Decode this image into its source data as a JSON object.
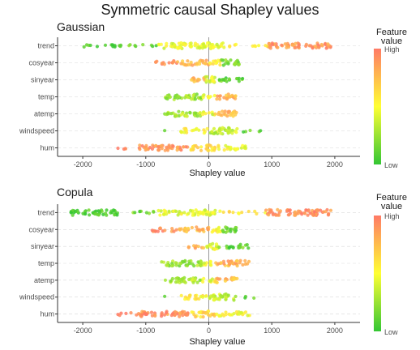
{
  "title": "Symmetric causal Shapley values",
  "legend": {
    "title_line1": "Feature",
    "title_line2": "value",
    "high": "High",
    "low": "Low",
    "colors": [
      "#33c633",
      "#ffff33",
      "#ff7a66"
    ]
  },
  "point_colors": {
    "low": "#33c633",
    "mid": "#ffff33",
    "high": "#ff7a66"
  },
  "chart_data": [
    {
      "type": "scatter",
      "title": "Gaussian",
      "xlabel": "Shapley value",
      "xlim": [
        -2400,
        2400
      ],
      "x_ticks": [
        -2000,
        -1000,
        0,
        1000,
        2000
      ],
      "features": [
        "trend",
        "cosyear",
        "sinyear",
        "temp",
        "atemp",
        "windspeed",
        "hum"
      ],
      "series": [
        {
          "feature": "trend",
          "range": [
            -2100,
            1950
          ],
          "segments": [
            {
              "from": -2100,
              "to": -1400,
              "value": 0.05,
              "density": 0.25
            },
            {
              "from": -1400,
              "to": -800,
              "value": 0.15,
              "density": 0.2
            },
            {
              "from": -800,
              "to": 250,
              "value": 0.45,
              "density": 0.9
            },
            {
              "from": 250,
              "to": 950,
              "value": 0.6,
              "density": 0.2
            },
            {
              "from": 950,
              "to": 1950,
              "value": 0.9,
              "density": 0.8
            }
          ]
        },
        {
          "feature": "cosyear",
          "range": [
            -850,
            500
          ],
          "segments": [
            {
              "from": -850,
              "to": -500,
              "value": 0.95,
              "density": 0.5
            },
            {
              "from": -500,
              "to": 0,
              "value": 0.75,
              "density": 0.7
            },
            {
              "from": 0,
              "to": 200,
              "value": 0.55,
              "density": 0.8
            },
            {
              "from": 200,
              "to": 500,
              "value": 0.15,
              "density": 0.9
            }
          ]
        },
        {
          "feature": "sinyear",
          "range": [
            -300,
            600
          ],
          "segments": [
            {
              "from": -300,
              "to": -50,
              "value": 0.8,
              "density": 0.7
            },
            {
              "from": -50,
              "to": 150,
              "value": 0.45,
              "density": 1.0
            },
            {
              "from": 150,
              "to": 600,
              "value": 0.1,
              "density": 0.5
            }
          ]
        },
        {
          "feature": "temp",
          "range": [
            -700,
            450
          ],
          "segments": [
            {
              "from": -700,
              "to": -100,
              "value": 0.25,
              "density": 0.8
            },
            {
              "from": -100,
              "to": 100,
              "value": 0.45,
              "density": 0.5
            },
            {
              "from": 100,
              "to": 450,
              "value": 0.8,
              "density": 0.8
            }
          ]
        },
        {
          "feature": "atemp",
          "range": [
            -700,
            450
          ],
          "segments": [
            {
              "from": -700,
              "to": -100,
              "value": 0.3,
              "density": 0.8
            },
            {
              "from": -100,
              "to": 100,
              "value": 0.45,
              "density": 0.5
            },
            {
              "from": 100,
              "to": 450,
              "value": 0.75,
              "density": 0.8
            }
          ]
        },
        {
          "feature": "windspeed",
          "range": [
            -700,
            900
          ],
          "segments": [
            {
              "from": -700,
              "to": -700,
              "value": 0.05,
              "density": 0.1
            },
            {
              "from": -450,
              "to": 0,
              "value": 0.55,
              "density": 0.6
            },
            {
              "from": 0,
              "to": 450,
              "value": 0.35,
              "density": 1.0
            },
            {
              "from": 450,
              "to": 900,
              "value": 0.1,
              "density": 0.15
            }
          ]
        },
        {
          "feature": "hum",
          "range": [
            -1450,
            600
          ],
          "segments": [
            {
              "from": -1450,
              "to": -1100,
              "value": 0.95,
              "density": 0.2
            },
            {
              "from": -1100,
              "to": -300,
              "value": 0.9,
              "density": 0.8
            },
            {
              "from": -300,
              "to": 100,
              "value": 0.65,
              "density": 0.9
            },
            {
              "from": 100,
              "to": 600,
              "value": 0.5,
              "density": 0.6
            }
          ]
        }
      ]
    },
    {
      "type": "scatter",
      "title": "Copula",
      "xlabel": "Shapley value",
      "xlim": [
        -2400,
        2400
      ],
      "x_ticks": [
        -2000,
        -1000,
        0,
        1000,
        2000
      ],
      "features": [
        "trend",
        "cosyear",
        "sinyear",
        "temp",
        "atemp",
        "windspeed",
        "hum"
      ],
      "series": [
        {
          "feature": "trend",
          "range": [
            -2200,
            1950
          ],
          "segments": [
            {
              "from": -2200,
              "to": -1400,
              "value": 0.05,
              "density": 0.8
            },
            {
              "from": -1400,
              "to": -800,
              "value": 0.15,
              "density": 0.2
            },
            {
              "from": -800,
              "to": 200,
              "value": 0.45,
              "density": 0.8
            },
            {
              "from": 200,
              "to": 900,
              "value": 0.6,
              "density": 0.2
            },
            {
              "from": 900,
              "to": 1950,
              "value": 0.9,
              "density": 0.9
            }
          ]
        },
        {
          "feature": "cosyear",
          "range": [
            -900,
            450
          ],
          "segments": [
            {
              "from": -900,
              "to": -500,
              "value": 0.95,
              "density": 0.5
            },
            {
              "from": -500,
              "to": 0,
              "value": 0.75,
              "density": 0.7
            },
            {
              "from": 0,
              "to": 200,
              "value": 0.55,
              "density": 0.8
            },
            {
              "from": 200,
              "to": 450,
              "value": 0.15,
              "density": 0.9
            }
          ]
        },
        {
          "feature": "sinyear",
          "range": [
            -350,
            650
          ],
          "segments": [
            {
              "from": -350,
              "to": -50,
              "value": 0.8,
              "density": 0.4
            },
            {
              "from": -50,
              "to": 150,
              "value": 0.45,
              "density": 1.0
            },
            {
              "from": 150,
              "to": 650,
              "value": 0.1,
              "density": 0.5
            }
          ]
        },
        {
          "feature": "temp",
          "range": [
            -750,
            650
          ],
          "segments": [
            {
              "from": -750,
              "to": -100,
              "value": 0.25,
              "density": 0.8
            },
            {
              "from": -100,
              "to": 100,
              "value": 0.45,
              "density": 0.5
            },
            {
              "from": 100,
              "to": 650,
              "value": 0.8,
              "density": 0.8
            }
          ]
        },
        {
          "feature": "atemp",
          "range": [
            -700,
            450
          ],
          "segments": [
            {
              "from": -700,
              "to": -100,
              "value": 0.3,
              "density": 0.8
            },
            {
              "from": -100,
              "to": 100,
              "value": 0.45,
              "density": 0.5
            },
            {
              "from": 100,
              "to": 450,
              "value": 0.75,
              "density": 0.8
            }
          ]
        },
        {
          "feature": "windspeed",
          "range": [
            -700,
            750
          ],
          "segments": [
            {
              "from": -700,
              "to": -700,
              "value": 0.05,
              "density": 0.1
            },
            {
              "from": -450,
              "to": 0,
              "value": 0.55,
              "density": 0.6
            },
            {
              "from": 0,
              "to": 450,
              "value": 0.35,
              "density": 1.0
            },
            {
              "from": 450,
              "to": 750,
              "value": 0.1,
              "density": 0.15
            }
          ]
        },
        {
          "feature": "hum",
          "range": [
            -1450,
            650
          ],
          "segments": [
            {
              "from": -1450,
              "to": -1150,
              "value": 0.95,
              "density": 0.2
            },
            {
              "from": -1150,
              "to": -300,
              "value": 0.9,
              "density": 0.8
            },
            {
              "from": -300,
              "to": 100,
              "value": 0.65,
              "density": 0.9
            },
            {
              "from": 100,
              "to": 650,
              "value": 0.5,
              "density": 0.6
            }
          ]
        }
      ]
    }
  ]
}
